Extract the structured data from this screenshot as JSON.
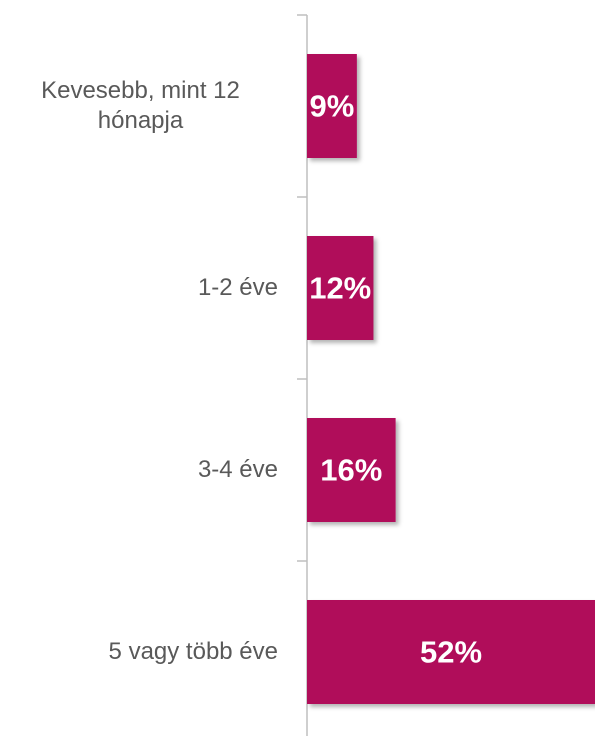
{
  "chart_data": {
    "type": "bar",
    "orientation": "horizontal",
    "categories": [
      "Kevesebb, mint 12 hónapja",
      "1-2 éve",
      "3-4 éve",
      "5 vagy több éve"
    ],
    "values": [
      9,
      12,
      16,
      52
    ],
    "value_labels": [
      "9%",
      "12%",
      "16%",
      "52%"
    ],
    "color": "#b0095a",
    "xlim": [
      0,
      52
    ]
  }
}
